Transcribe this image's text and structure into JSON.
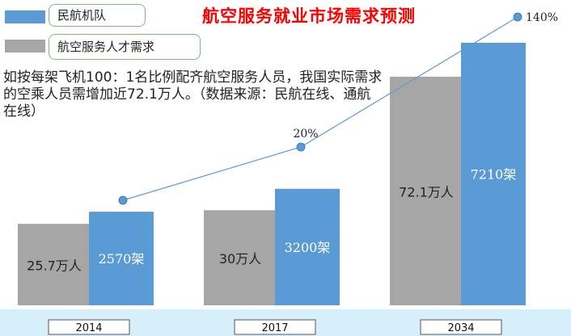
{
  "title": "航空服务就业市场需求预测",
  "legend": [
    {
      "name": "民航机队",
      "color": "#5b9bd5"
    },
    {
      "name": "航空服务人才需求",
      "color": "#a6a6a6"
    }
  ],
  "note": "如按每架飞机100：1名比例配齐航空服务人员，我国实际需求的空乘人员需增加近72.1万人。（数据来源：民航在线、通航在线）",
  "chart_data": {
    "type": "bar",
    "categories": [
      "2014",
      "2017",
      "2034"
    ],
    "series": [
      {
        "name": "航空服务人才需求",
        "values": [
          25.7,
          30,
          72.1
        ],
        "labels": [
          "25.7万人",
          "30万人",
          "72.1万人"
        ],
        "color": "#a6a6a6"
      },
      {
        "name": "民航机队",
        "values": [
          2570,
          3200,
          7210
        ],
        "labels": [
          "2570架",
          "3200架",
          "7210架"
        ],
        "color": "#5b9bd5"
      }
    ],
    "growth_line": {
      "labels": [
        "",
        "20%",
        "140%"
      ],
      "color": "#5b9bd5"
    }
  }
}
